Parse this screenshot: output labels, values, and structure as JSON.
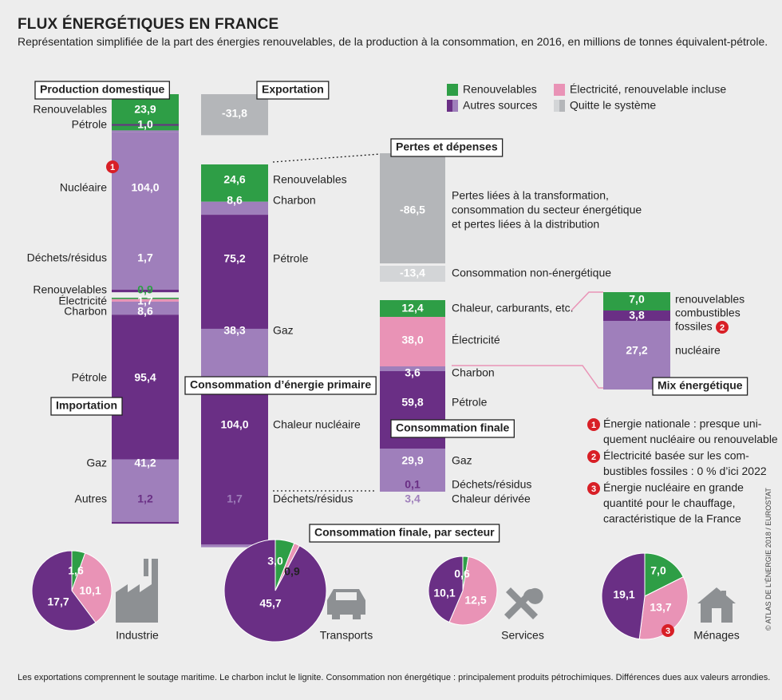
{
  "title": "FLUX ÉNERGÉTIQUES EN FRANCE",
  "subtitle": "Représentation simplifiée de la part des énergies renouvelables, de la production à la consommation, en 2016, en millions de tonnes équivalent-pétrole.",
  "footnote": "Les exportations comprennent le soutage maritime. Le charbon inclut le lignite. Consommation non énergétique : principalement produits pétrochimiques. Différences dues aux valeurs arrondies.",
  "credit": "© ATLAS DE L'ÉNERGIE 2018 / EUROSTAT",
  "colors": {
    "green": "#2e9e46",
    "purple": "#6a2f85",
    "lilac": "#9f7fbb",
    "pink": "#e993b6",
    "gray_dark": "#b4b6b9",
    "gray_light": "#d3d5d7",
    "badge": "#d81f26"
  },
  "legend": [
    {
      "label": "Renouvelables",
      "color": "#2e9e46"
    },
    {
      "label": "Électricité, renouvelable incluse",
      "color": "#e993b6"
    },
    {
      "label": "Autres sources",
      "color": "#6a2f85"
    },
    {
      "label": "Quitte le système",
      "color": "#b4b6b9"
    }
  ],
  "section_titles": {
    "production": "Production domestique",
    "importation": "Importation",
    "exportation": "Exportation",
    "pertes": "Pertes et dépenses",
    "primaire": "Consommation d’énergie primaire",
    "finale": "Consommation finale",
    "mix": "Mix énergétique",
    "secteur": "Consommation finale, par secteur"
  },
  "chart_data": [
    {
      "type": "bar",
      "title": "Production domestique",
      "stacked": true,
      "categories": [
        "Renouvelables",
        "Pétrole",
        "Nucléaire",
        "Déchets/résidus"
      ],
      "values": [
        23.9,
        1.0,
        104.0,
        1.7
      ],
      "labels": [
        "23,9",
        "1,0",
        "104,0",
        "1,7"
      ]
    },
    {
      "type": "bar",
      "title": "Importation",
      "stacked": true,
      "categories": [
        "Renouvelables",
        "Électricité",
        "Charbon",
        "Pétrole",
        "Gaz",
        "Autres"
      ],
      "values": [
        0.9,
        1.7,
        8.6,
        95.4,
        41.2,
        1.2
      ],
      "labels": [
        "0,9",
        "1,7",
        "8,6",
        "95,4",
        "41,2",
        "1,2"
      ]
    },
    {
      "type": "bar",
      "title": "Exportation",
      "values": [
        -31.8
      ],
      "labels": [
        "-31,8"
      ]
    },
    {
      "type": "bar",
      "title": "Consommation d’énergie primaire",
      "stacked": true,
      "categories": [
        "Renouvelables",
        "Charbon",
        "Pétrole",
        "Gaz",
        "Chaleur nucléaire",
        "Déchets/résidus"
      ],
      "values": [
        24.6,
        8.6,
        75.2,
        38.3,
        104.0,
        1.7
      ],
      "labels": [
        "24,6",
        "8,6",
        "75,2",
        "38,3",
        "104,0",
        "1,7"
      ]
    },
    {
      "type": "bar",
      "title": "Pertes et dépenses",
      "stacked": true,
      "categories": [
        "Pertes liées à la transformation, consommation du secteur énergétique et pertes liées à la distribution",
        "Consommation non-énergétique"
      ],
      "values": [
        -86.5,
        -13.4
      ],
      "labels": [
        "-86,5",
        "-13,4"
      ]
    },
    {
      "type": "bar",
      "title": "Consommation finale",
      "stacked": true,
      "categories": [
        "Chaleur, carburants, etc.",
        "Électricité",
        "Charbon",
        "Pétrole",
        "Gaz",
        "Déchets/résidus",
        "Chaleur dérivée"
      ],
      "values": [
        12.4,
        38.0,
        3.6,
        59.8,
        29.9,
        0.1,
        3.4
      ],
      "labels": [
        "12,4",
        "38,0",
        "3,6",
        "59,8",
        "29,9",
        "0,1",
        "3,4"
      ]
    },
    {
      "type": "bar",
      "title": "Mix énergétique",
      "stacked": true,
      "categories": [
        "renouvelables",
        "combustibles fossiles",
        "nucléaire"
      ],
      "values": [
        7.0,
        3.8,
        27.2
      ],
      "labels": [
        "7,0",
        "3,8",
        "27,2"
      ]
    },
    {
      "type": "pie",
      "title": "Industrie",
      "categories": [
        "Renouvelables",
        "Électricité",
        "Autres sources"
      ],
      "values": [
        1.6,
        10.1,
        17.7
      ],
      "labels": [
        "1,6",
        "10,1",
        "17,7"
      ]
    },
    {
      "type": "pie",
      "title": "Transports",
      "categories": [
        "Renouvelables",
        "Électricité",
        "Autres sources"
      ],
      "values": [
        3.0,
        0.9,
        45.7
      ],
      "labels": [
        "3,0",
        "0,9",
        "45,7"
      ]
    },
    {
      "type": "pie",
      "title": "Services",
      "categories": [
        "Renouvelables",
        "Électricité",
        "Autres sources"
      ],
      "values": [
        0.6,
        12.5,
        10.1
      ],
      "labels": [
        "0,6",
        "12,5",
        "10,1"
      ]
    },
    {
      "type": "pie",
      "title": "Ménages",
      "categories": [
        "Renouvelables",
        "Électricité",
        "Autres sources"
      ],
      "values": [
        7.0,
        13.7,
        19.1
      ],
      "labels": [
        "7,0",
        "13,7",
        "19,1"
      ]
    }
  ],
  "mix_labels": {
    "renouvelables": "renouvelables",
    "fossiles_1": "combustibles",
    "fossiles_2": "fossiles",
    "nucleaire": "nucléaire"
  },
  "notes": [
    {
      "num": "1",
      "lines": [
        "Énergie nationale : presque uni-",
        "quement nucléaire ou renouvelable"
      ]
    },
    {
      "num": "2",
      "lines": [
        "Électricité basée sur les com-",
        "bustibles fossiles : 0 % d’ici 2022"
      ]
    },
    {
      "num": "3",
      "lines": [
        "Énergie nucléaire en grande",
        "quantité pour le chauffage,",
        "caractéristique de la France"
      ]
    }
  ],
  "pertes_text": [
    "Pertes liées à la transformation,",
    "consommation du secteur énergétique",
    "et pertes liées à la distribution"
  ]
}
